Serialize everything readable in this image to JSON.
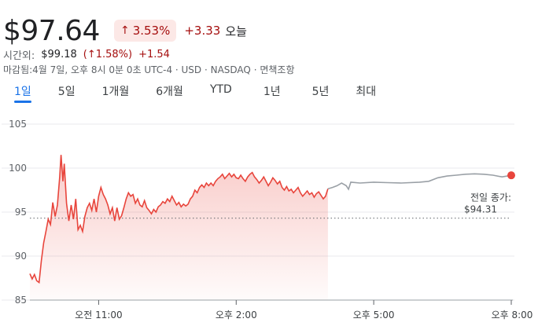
{
  "quote": {
    "price": "$97.64",
    "change_pct": "3.53%",
    "change_abs": "+3.33",
    "change_label": "오늘",
    "arrow_icon": "arrow-up-icon",
    "color_negative": "#a50e0e",
    "color_pill_bg": "#fce8e6"
  },
  "after_hours": {
    "label": "시간외:",
    "price": "$99.18",
    "change_pct": "(↑1.58%)",
    "change_abs": "+1.54"
  },
  "meta": {
    "text": "마감됨:4월 7일, 오후 8시 0분 0초 UTC-4 · USD · NASDAQ · 면책조항"
  },
  "tabs": [
    {
      "label": "1일",
      "active": true
    },
    {
      "label": "5일",
      "active": false
    },
    {
      "label": "1개월",
      "active": false
    },
    {
      "label": "6개월",
      "active": false
    },
    {
      "label": "YTD",
      "active": false
    },
    {
      "label": "1년",
      "active": false
    },
    {
      "label": "5년",
      "active": false
    },
    {
      "label": "최대",
      "active": false
    }
  ],
  "chart_data": {
    "type": "line",
    "ylim": [
      85,
      105
    ],
    "yticks": [
      105,
      100,
      95,
      90,
      85
    ],
    "x_range_hours": [
      9.5,
      20
    ],
    "xticks": [
      {
        "hour": 11,
        "label": "오전 11:00"
      },
      {
        "hour": 14,
        "label": "오후 2:00"
      },
      {
        "hour": 17,
        "label": "오후 5:00"
      },
      {
        "hour": 20,
        "label": "오후 8:00"
      }
    ],
    "previous_close": {
      "label": "전일 종가:",
      "value_label": "$94.31",
      "value": 94.31
    },
    "regular_session": {
      "color": "#e8453c",
      "points": [
        [
          9.5,
          88.0
        ],
        [
          9.55,
          87.4
        ],
        [
          9.6,
          87.9
        ],
        [
          9.65,
          87.2
        ],
        [
          9.7,
          87.0
        ],
        [
          9.75,
          89.5
        ],
        [
          9.8,
          91.5
        ],
        [
          9.85,
          92.8
        ],
        [
          9.9,
          94.2
        ],
        [
          9.95,
          93.6
        ],
        [
          10.0,
          96.1
        ],
        [
          10.05,
          94.5
        ],
        [
          10.1,
          95.8
        ],
        [
          10.15,
          99.0
        ],
        [
          10.18,
          101.5
        ],
        [
          10.22,
          98.5
        ],
        [
          10.25,
          100.5
        ],
        [
          10.3,
          96.0
        ],
        [
          10.35,
          94.0
        ],
        [
          10.4,
          95.8
        ],
        [
          10.45,
          94.2
        ],
        [
          10.5,
          96.5
        ],
        [
          10.55,
          93.0
        ],
        [
          10.6,
          93.5
        ],
        [
          10.65,
          92.8
        ],
        [
          10.7,
          94.5
        ],
        [
          10.75,
          95.5
        ],
        [
          10.8,
          96.0
        ],
        [
          10.85,
          95.2
        ],
        [
          10.9,
          96.5
        ],
        [
          10.95,
          95.0
        ],
        [
          11.0,
          96.8
        ],
        [
          11.05,
          97.8
        ],
        [
          11.1,
          97.0
        ],
        [
          11.15,
          96.5
        ],
        [
          11.2,
          95.8
        ],
        [
          11.25,
          94.8
        ],
        [
          11.3,
          95.5
        ],
        [
          11.35,
          94.0
        ],
        [
          11.4,
          95.5
        ],
        [
          11.45,
          94.2
        ],
        [
          11.5,
          94.6
        ],
        [
          11.55,
          95.5
        ],
        [
          11.6,
          96.5
        ],
        [
          11.65,
          97.2
        ],
        [
          11.7,
          96.8
        ],
        [
          11.75,
          97.0
        ],
        [
          11.8,
          96.0
        ],
        [
          11.85,
          96.5
        ],
        [
          11.9,
          95.8
        ],
        [
          11.95,
          95.6
        ],
        [
          12.0,
          96.3
        ],
        [
          12.05,
          95.5
        ],
        [
          12.1,
          95.2
        ],
        [
          12.15,
          94.8
        ],
        [
          12.2,
          95.3
        ],
        [
          12.25,
          95.0
        ],
        [
          12.3,
          95.6
        ],
        [
          12.35,
          95.8
        ],
        [
          12.4,
          96.2
        ],
        [
          12.45,
          96.0
        ],
        [
          12.5,
          96.5
        ],
        [
          12.55,
          96.2
        ],
        [
          12.6,
          96.8
        ],
        [
          12.65,
          96.3
        ],
        [
          12.7,
          95.8
        ],
        [
          12.75,
          96.1
        ],
        [
          12.8,
          95.6
        ],
        [
          12.85,
          95.9
        ],
        [
          12.9,
          95.7
        ],
        [
          12.95,
          95.9
        ],
        [
          13.0,
          96.5
        ],
        [
          13.05,
          96.8
        ],
        [
          13.1,
          97.5
        ],
        [
          13.15,
          97.2
        ],
        [
          13.2,
          97.8
        ],
        [
          13.25,
          98.1
        ],
        [
          13.3,
          97.8
        ],
        [
          13.35,
          98.3
        ],
        [
          13.4,
          98.0
        ],
        [
          13.45,
          98.3
        ],
        [
          13.5,
          98.0
        ],
        [
          13.55,
          98.5
        ],
        [
          13.6,
          98.8
        ],
        [
          13.65,
          99.0
        ],
        [
          13.7,
          99.3
        ],
        [
          13.75,
          98.8
        ],
        [
          13.8,
          99.1
        ],
        [
          13.85,
          99.4
        ],
        [
          13.9,
          99.0
        ],
        [
          13.95,
          99.3
        ],
        [
          14.0,
          98.9
        ],
        [
          14.05,
          98.8
        ],
        [
          14.1,
          99.2
        ],
        [
          14.15,
          98.8
        ],
        [
          14.2,
          98.5
        ],
        [
          14.25,
          99.0
        ],
        [
          14.3,
          99.3
        ],
        [
          14.35,
          99.5
        ],
        [
          14.4,
          99.0
        ],
        [
          14.45,
          98.7
        ],
        [
          14.5,
          98.3
        ],
        [
          14.55,
          98.6
        ],
        [
          14.6,
          99.0
        ],
        [
          14.65,
          98.5
        ],
        [
          14.7,
          98.0
        ],
        [
          14.75,
          98.4
        ],
        [
          14.8,
          98.9
        ],
        [
          14.85,
          98.6
        ],
        [
          14.9,
          98.2
        ],
        [
          14.95,
          98.5
        ],
        [
          15.0,
          97.8
        ],
        [
          15.05,
          97.5
        ],
        [
          15.1,
          97.9
        ],
        [
          15.15,
          97.4
        ],
        [
          15.2,
          97.6
        ],
        [
          15.25,
          97.2
        ],
        [
          15.3,
          97.5
        ],
        [
          15.35,
          97.8
        ],
        [
          15.4,
          97.2
        ],
        [
          15.45,
          96.8
        ],
        [
          15.5,
          97.1
        ],
        [
          15.55,
          97.4
        ],
        [
          15.6,
          97.0
        ],
        [
          15.65,
          97.2
        ],
        [
          15.7,
          96.7
        ],
        [
          15.75,
          97.1
        ],
        [
          15.8,
          97.3
        ],
        [
          15.85,
          96.9
        ],
        [
          15.9,
          96.5
        ],
        [
          15.95,
          96.8
        ],
        [
          16.0,
          97.64
        ]
      ]
    },
    "after_hours_session": {
      "color": "#9aa0a6",
      "points": [
        [
          16.0,
          97.64
        ],
        [
          16.1,
          97.8
        ],
        [
          16.2,
          98.0
        ],
        [
          16.3,
          98.3
        ],
        [
          16.4,
          98.0
        ],
        [
          16.45,
          97.6
        ],
        [
          16.5,
          98.4
        ],
        [
          16.7,
          98.3
        ],
        [
          17.0,
          98.4
        ],
        [
          17.3,
          98.35
        ],
        [
          17.6,
          98.3
        ],
        [
          18.0,
          98.4
        ],
        [
          18.2,
          98.5
        ],
        [
          18.4,
          98.9
        ],
        [
          18.6,
          99.1
        ],
        [
          18.8,
          99.2
        ],
        [
          19.0,
          99.3
        ],
        [
          19.2,
          99.35
        ],
        [
          19.4,
          99.3
        ],
        [
          19.6,
          99.2
        ],
        [
          19.8,
          99.0
        ],
        [
          20.0,
          99.18
        ]
      ],
      "end_marker_color": "#e8453c"
    }
  }
}
